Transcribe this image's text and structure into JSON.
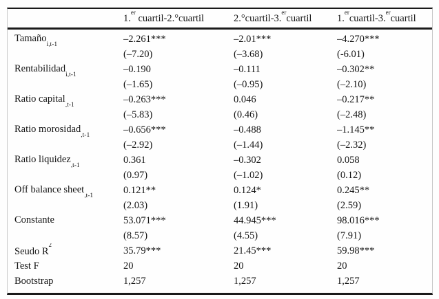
{
  "table": {
    "header": {
      "col1_parts": [
        {
          "t": "1."
        },
        {
          "t": "er",
          "s": "sup"
        },
        {
          "t": " cuartil-2.°cuartil"
        }
      ],
      "col2_parts": [
        {
          "t": "2.°cuartil-3."
        },
        {
          "t": "er",
          "s": "sup"
        },
        {
          "t": "cuartil"
        }
      ],
      "col3_parts": [
        {
          "t": "1."
        },
        {
          "t": "er",
          "s": "sup"
        },
        {
          "t": "cuartil-3."
        },
        {
          "t": "er",
          "s": "sup"
        },
        {
          "t": "cuartil"
        }
      ]
    },
    "rows": [
      {
        "label": "Tamaño",
        "sub": "i,t-1",
        "values": [
          "–2.261***",
          "–2.01***",
          "–4.270***"
        ],
        "tstats": [
          "(–7.20)",
          "(–3.68)",
          "(-6.01)"
        ]
      },
      {
        "label": "Rentabilidad",
        "sub": "i,t-1",
        "values": [
          "–0.190",
          "–0.111",
          "–0.302**"
        ],
        "tstats": [
          "(–1.65)",
          "(–0.95)",
          "(–2.10)"
        ]
      },
      {
        "label": "Ratio capital",
        "sub": ",t-1",
        "values": [
          "–0.263***",
          "0.046",
          "–0.217**"
        ],
        "tstats": [
          "(–5.83)",
          "(0.46)",
          "(–2.48)"
        ]
      },
      {
        "label": "Ratio morosidad",
        "sub": ",t-1",
        "values": [
          "–0.656***",
          "–0.488",
          "–1.145**"
        ],
        "tstats": [
          "(–2.92)",
          "(–1.44)",
          "(–2.32)"
        ]
      },
      {
        "label": "Ratio liquidez",
        "sub": ",t-1",
        "values": [
          "0.361",
          "–0.302",
          "0.058"
        ],
        "tstats": [
          "(0.97)",
          "(–1.02)",
          "(0.12)"
        ]
      },
      {
        "label": "Off balance sheet",
        "sub": ",t-1",
        "values": [
          "0.121**",
          "0.124*",
          "0.245**"
        ],
        "tstats": [
          "(2.03)",
          "(1.91)",
          "(2.59)"
        ]
      },
      {
        "label": "Constante",
        "sub": "",
        "values": [
          "53.071***",
          "44.945***",
          "98.016***"
        ],
        "tstats": [
          "(8.57)",
          "(4.55)",
          "(7.91)"
        ]
      },
      {
        "label": "Seudo R",
        "sup": "2",
        "values": [
          "35.79***",
          "21.45***",
          "59.98***"
        ]
      },
      {
        "label": "Test F",
        "values": [
          "20",
          "20",
          "20"
        ]
      },
      {
        "label": "Bootstrap",
        "values": [
          "1,257",
          "1,257",
          "1,257"
        ]
      }
    ]
  }
}
